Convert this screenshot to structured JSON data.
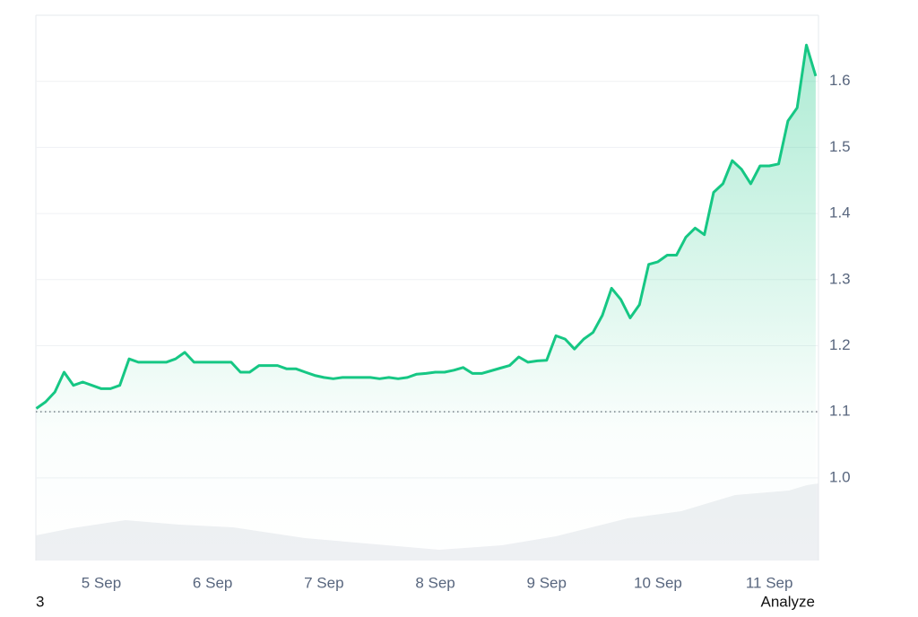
{
  "chart_data": {
    "type": "line",
    "categories": [
      null,
      null,
      null,
      null,
      null,
      null,
      null,
      "5 Sep",
      null,
      null,
      null,
      null,
      null,
      null,
      null,
      null,
      null,
      null,
      null,
      "6 Sep",
      null,
      null,
      null,
      null,
      null,
      null,
      null,
      null,
      null,
      null,
      null,
      "7 Sep",
      null,
      null,
      null,
      null,
      null,
      null,
      null,
      null,
      null,
      null,
      null,
      "8 Sep",
      null,
      null,
      null,
      null,
      null,
      null,
      null,
      null,
      null,
      null,
      null,
      "9 Sep",
      null,
      null,
      null,
      null,
      null,
      null,
      null,
      null,
      null,
      null,
      null,
      "10 Sep",
      null,
      null,
      null,
      null,
      null,
      null,
      null,
      null,
      null,
      null,
      null,
      "11 Sep",
      null,
      null,
      null,
      null,
      null
    ],
    "values": [
      1.105,
      1.115,
      1.13,
      1.16,
      1.14,
      1.145,
      1.14,
      1.135,
      1.135,
      1.14,
      1.18,
      1.175,
      1.175,
      1.175,
      1.175,
      1.18,
      1.19,
      1.175,
      1.175,
      1.175,
      1.175,
      1.175,
      1.16,
      1.16,
      1.17,
      1.17,
      1.17,
      1.165,
      1.165,
      1.16,
      1.155,
      1.152,
      1.15,
      1.152,
      1.152,
      1.152,
      1.152,
      1.15,
      1.152,
      1.15,
      1.152,
      1.157,
      1.158,
      1.16,
      1.16,
      1.163,
      1.167,
      1.158,
      1.158,
      1.162,
      1.166,
      1.17,
      1.183,
      1.175,
      1.177,
      1.178,
      1.215,
      1.21,
      1.195,
      1.21,
      1.22,
      1.246,
      1.287,
      1.27,
      1.242,
      1.262,
      1.323,
      1.327,
      1.337,
      1.337,
      1.364,
      1.378,
      1.368,
      1.432,
      1.445,
      1.48,
      1.467,
      1.445,
      1.472,
      1.472,
      1.475,
      1.54,
      1.56,
      1.655,
      1.608
    ],
    "color": "#16c784",
    "baseline": 1.1,
    "ylim": [
      0.875,
      1.7
    ],
    "yticks": [
      {
        "value": 1,
        "label": "1.0"
      },
      1.1,
      1.2,
      1.3,
      1.4,
      1.5,
      1.6
    ],
    "grid": true
  },
  "footer": {
    "left": "3",
    "right": "Analyze"
  }
}
